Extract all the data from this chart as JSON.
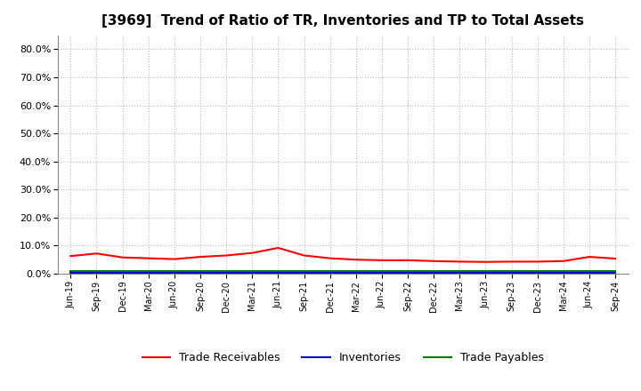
{
  "title": "[3969]  Trend of Ratio of TR, Inventories and TP to Total Assets",
  "x_labels": [
    "Jun-19",
    "Sep-19",
    "Dec-19",
    "Mar-20",
    "Jun-20",
    "Sep-20",
    "Dec-20",
    "Mar-21",
    "Jun-21",
    "Sep-21",
    "Dec-21",
    "Mar-22",
    "Jun-22",
    "Sep-22",
    "Dec-22",
    "Mar-23",
    "Jun-23",
    "Sep-23",
    "Dec-23",
    "Mar-24",
    "Jun-24",
    "Sep-24"
  ],
  "trade_receivables": [
    0.063,
    0.072,
    0.058,
    0.055,
    0.052,
    0.06,
    0.065,
    0.074,
    0.092,
    0.065,
    0.055,
    0.05,
    0.048,
    0.048,
    0.045,
    0.043,
    0.042,
    0.043,
    0.043,
    0.045,
    0.06,
    0.054
  ],
  "inventories": [
    0.002,
    0.002,
    0.002,
    0.002,
    0.002,
    0.002,
    0.002,
    0.002,
    0.002,
    0.002,
    0.002,
    0.002,
    0.002,
    0.002,
    0.002,
    0.002,
    0.002,
    0.002,
    0.002,
    0.002,
    0.002,
    0.002
  ],
  "trade_payables": [
    0.008,
    0.008,
    0.008,
    0.008,
    0.008,
    0.008,
    0.008,
    0.008,
    0.008,
    0.008,
    0.008,
    0.008,
    0.008,
    0.008,
    0.008,
    0.008,
    0.008,
    0.008,
    0.008,
    0.008,
    0.008,
    0.008
  ],
  "tr_color": "#ff0000",
  "inv_color": "#0000cc",
  "tp_color": "#007700",
  "ylim": [
    0.0,
    0.85
  ],
  "yticks": [
    0.0,
    0.1,
    0.2,
    0.3,
    0.4,
    0.5,
    0.6,
    0.7,
    0.8
  ],
  "background_color": "#ffffff",
  "plot_bg_color": "#ffffff",
  "grid_color": "#bbbbbb",
  "title_fontsize": 11,
  "legend_labels": [
    "Trade Receivables",
    "Inventories",
    "Trade Payables"
  ]
}
